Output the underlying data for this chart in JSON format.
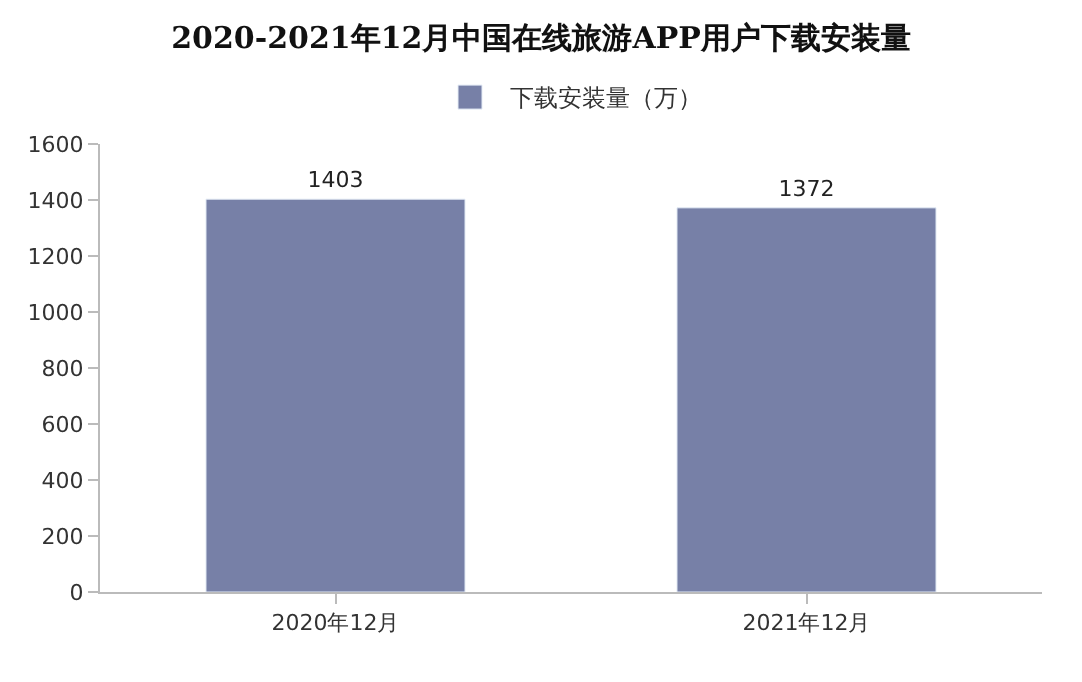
{
  "chart_data": {
    "type": "bar",
    "title": "2020-2021年12月中国在线旅游APP用户下载安装量",
    "categories": [
      "2020年12月",
      "2021年12月"
    ],
    "series": [
      {
        "name": "下载安装量（万）",
        "color": "#7780a7",
        "values": [
          1403,
          1372
        ]
      }
    ],
    "ylim": [
      0,
      1600
    ],
    "yticks": [
      0,
      200,
      400,
      600,
      800,
      1000,
      1200,
      1400,
      1600
    ],
    "data_labels": true,
    "legend": "top"
  }
}
